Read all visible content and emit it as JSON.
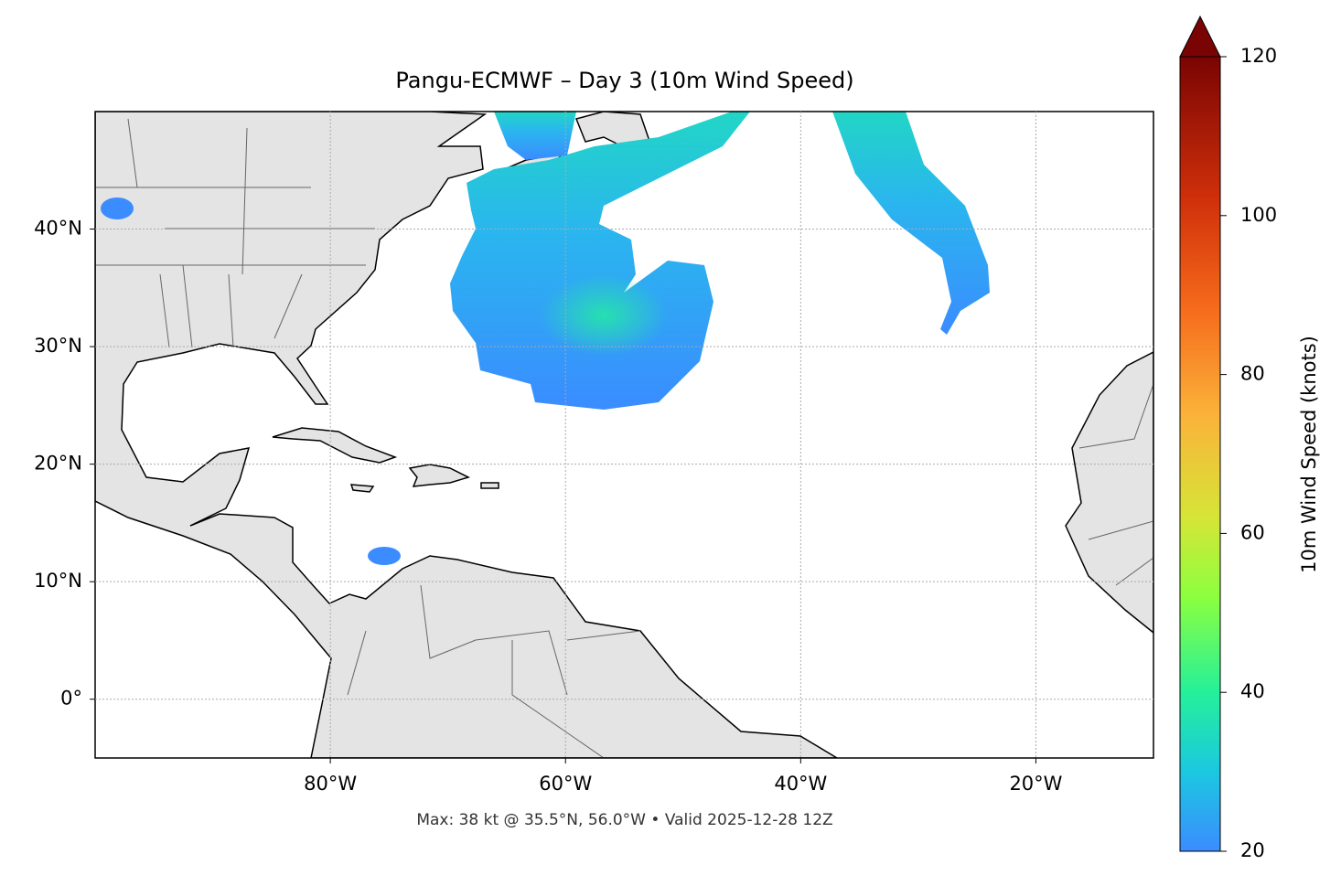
{
  "chart_data": {
    "type": "map",
    "title": "Pangu-ECMWF – Day 3 (10m Wind Speed)",
    "annotation": "Max: 38 kt @ 35.5°N, 56.0°W • Valid 2025-12-28 12Z",
    "xlim": [
      -100,
      -10
    ],
    "ylim": [
      -5,
      50
    ],
    "xticks": [
      {
        "value": -80,
        "label": "80°W"
      },
      {
        "value": -60,
        "label": "60°W"
      },
      {
        "value": -40,
        "label": "40°W"
      },
      {
        "value": -20,
        "label": "20°W"
      }
    ],
    "yticks": [
      {
        "value": 0,
        "label": "0°"
      },
      {
        "value": 10,
        "label": "10°N"
      },
      {
        "value": 20,
        "label": "20°N"
      },
      {
        "value": 30,
        "label": "30°N"
      },
      {
        "value": 40,
        "label": "40°N"
      }
    ],
    "grid": true,
    "colorbar": {
      "label": "10m Wind Speed (knots)",
      "lim": [
        20,
        120
      ],
      "ticks": [
        20,
        40,
        60,
        80,
        100,
        120
      ]
    }
  }
}
